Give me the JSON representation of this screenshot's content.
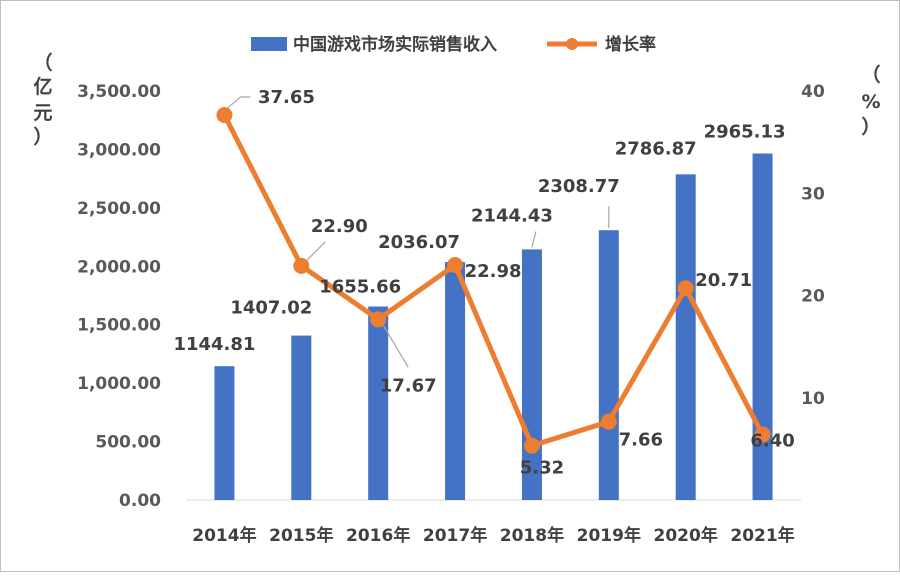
{
  "chart_data": {
    "type": "bar",
    "categories": [
      "2014年",
      "2015年",
      "2016年",
      "2017年",
      "2018年",
      "2019年",
      "2020年",
      "2021年"
    ],
    "series": [
      {
        "name": "中国游戏市场实际销售收入",
        "type": "bar",
        "axis": "left",
        "color": "#4472C4",
        "values": [
          1144.81,
          1407.02,
          1655.66,
          2036.07,
          2144.43,
          2308.77,
          2786.87,
          2965.13
        ],
        "labels": [
          "1144.81",
          "1407.02",
          "1655.66",
          "2036.07",
          "2144.43",
          "2308.77",
          "2786.87",
          "2965.13"
        ]
      },
      {
        "name": "增长率",
        "type": "line",
        "axis": "right",
        "color": "#ED7D31",
        "values": [
          37.65,
          22.9,
          17.67,
          22.98,
          5.32,
          7.66,
          20.71,
          6.4
        ],
        "labels": [
          "37.65",
          "22.90",
          "17.67",
          "22.98",
          "5.32",
          "7.66",
          "20.71",
          "6.40"
        ]
      }
    ],
    "y_left": {
      "range": [
        0,
        3500
      ],
      "ticks": [
        0,
        500,
        1000,
        1500,
        2000,
        2500,
        3000,
        3500
      ],
      "tick_labels": [
        "0.00",
        "500.00",
        "1,000.00",
        "1,500.00",
        "2,000.00",
        "2,500.00",
        "3,000.00",
        "3,500.00"
      ],
      "label_chars": [
        "（",
        "亿",
        "元",
        "）"
      ]
    },
    "y_right": {
      "range": [
        0,
        40
      ],
      "ticks": [
        10,
        20,
        30,
        40
      ],
      "tick_labels": [
        "10",
        "20",
        "30",
        "40"
      ],
      "label_chars": [
        "（",
        "%",
        "）"
      ]
    },
    "grid": false,
    "legend_position": "top-center"
  }
}
